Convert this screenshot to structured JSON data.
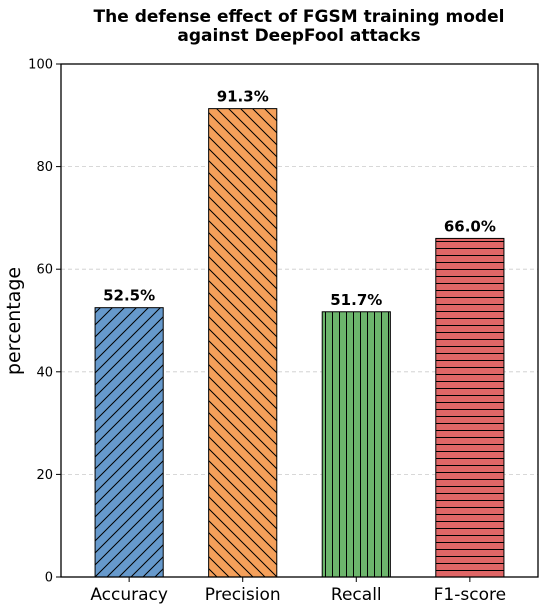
{
  "chart_data": {
    "type": "bar",
    "title": [
      "The defense effect of FGSM training model",
      "against DeepFool attacks"
    ],
    "xlabel": "",
    "ylabel": "percentage",
    "ylim": [
      0,
      100
    ],
    "yticks": [
      "0",
      "20",
      "40",
      "60",
      "80",
      "100"
    ],
    "categories": [
      "Accuracy",
      "Precision",
      "Recall",
      "F1-score"
    ],
    "values": [
      52.5,
      91.3,
      51.7,
      66.0
    ],
    "value_labels": [
      "52.5%",
      "91.3%",
      "51.7%",
      "66.0%"
    ],
    "colors": [
      "#6699cc",
      "#f5a05a",
      "#6cb56c",
      "#e06666"
    ],
    "hatches": [
      "//",
      "\\\\",
      "||",
      "--"
    ],
    "grid": "horizontal dashed",
    "legend": "none"
  }
}
